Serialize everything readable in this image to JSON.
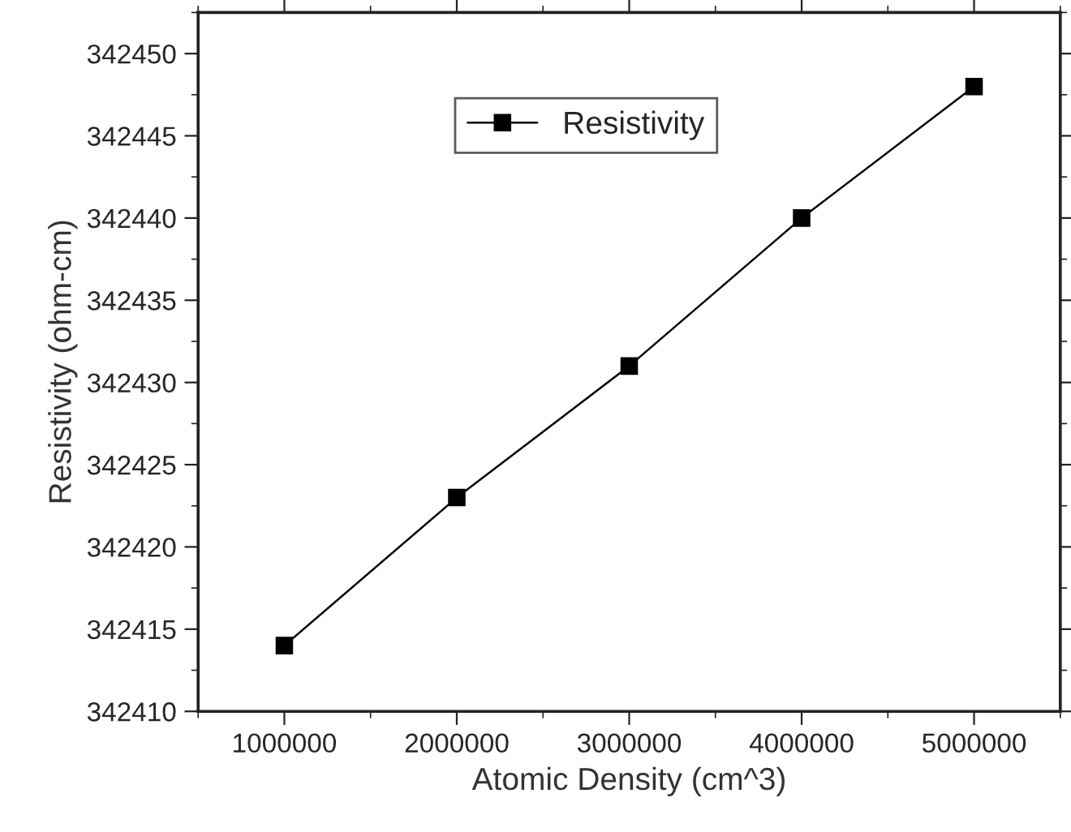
{
  "chart_data": {
    "type": "line",
    "xlabel": "Atomic Density (cm^3)",
    "ylabel": "Resistivity (ohm-cm)",
    "x": [
      1000000,
      2000000,
      3000000,
      4000000,
      5000000
    ],
    "series": [
      {
        "name": "Resistivity",
        "color": "#000000",
        "values": [
          342414,
          342423,
          342431,
          342440,
          342448
        ]
      }
    ],
    "xlim": [
      500000,
      5500000
    ],
    "xticks": [
      1000000,
      2000000,
      3000000,
      4000000,
      5000000
    ],
    "ylim": [
      342410,
      342452.5
    ],
    "yticks": [
      342410,
      342415,
      342420,
      342425,
      342430,
      342435,
      342440,
      342445,
      342450
    ],
    "marker": "square",
    "line_style": "solid",
    "grid": false,
    "legend": "top"
  }
}
